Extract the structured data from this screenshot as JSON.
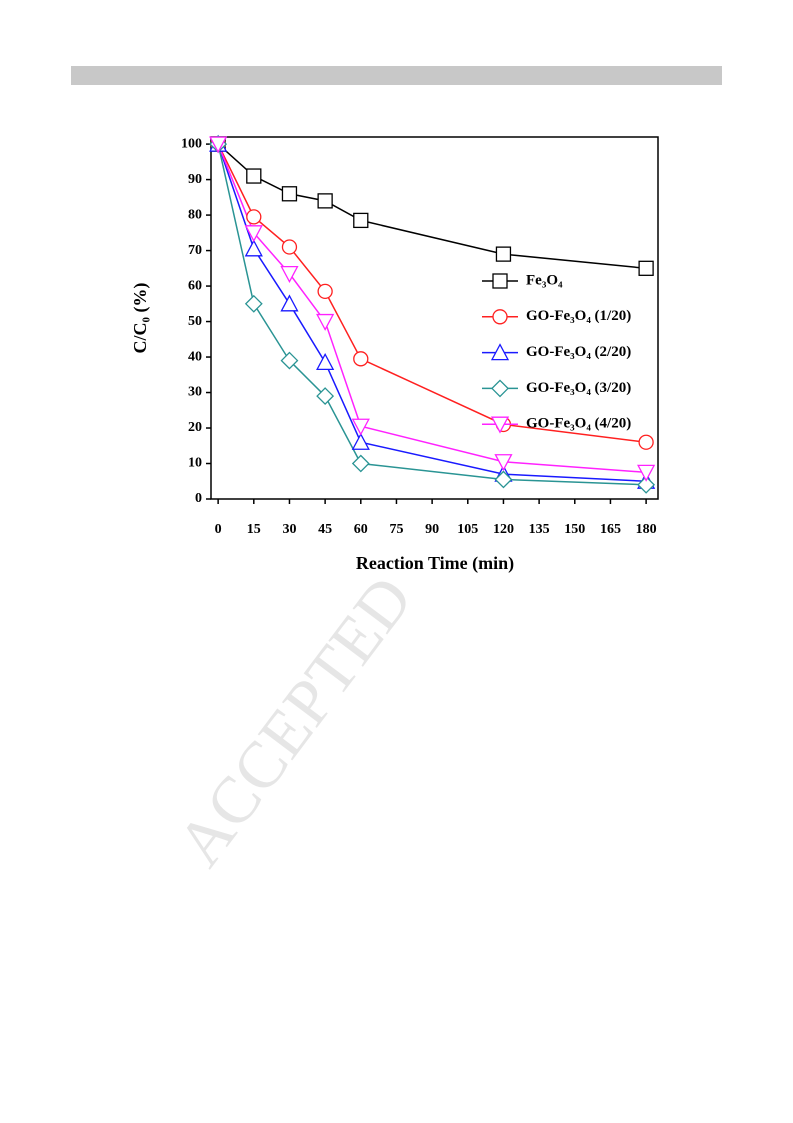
{
  "chart_data": {
    "type": "line",
    "x_label": "Reaction Time (min)",
    "y_label": "C/C₀ (%)",
    "x": [
      0,
      15,
      30,
      45,
      60,
      120,
      180
    ],
    "series": [
      {
        "name": "Fe₃O₄",
        "color": "#000000",
        "marker": "square",
        "values": [
          100,
          91,
          86,
          84,
          78.5,
          69,
          65
        ]
      },
      {
        "name": "GO-Fe₃O₄ (1/20)",
        "color": "#ff2020",
        "marker": "circle",
        "values": [
          100,
          79.5,
          71,
          58.5,
          39.5,
          21,
          16
        ]
      },
      {
        "name": "GO-Fe₃O₄ (2/20)",
        "color": "#1a1aff",
        "marker": "triangle-up",
        "values": [
          100,
          70.5,
          55,
          38.5,
          16,
          7,
          5
        ]
      },
      {
        "name": "GO-Fe₃O₄ (3/20)",
        "color": "#2a9494",
        "marker": "diamond",
        "values": [
          100,
          55,
          39,
          29,
          10,
          5.5,
          4
        ]
      },
      {
        "name": "GO-Fe₃O₄ (4/20)",
        "color": "#ff22ff",
        "marker": "triangle-down",
        "values": [
          100,
          75,
          63.5,
          50,
          20.5,
          10.5,
          7.5
        ]
      }
    ],
    "xlim": [
      -3,
      185
    ],
    "ylim": [
      0,
      102
    ],
    "xticks": [
      0,
      15,
      30,
      45,
      60,
      75,
      90,
      105,
      120,
      135,
      150,
      165,
      180
    ],
    "yticks": [
      0,
      10,
      20,
      30,
      40,
      50,
      60,
      70,
      80,
      90,
      100
    ]
  },
  "watermark": "ACCEPTED"
}
